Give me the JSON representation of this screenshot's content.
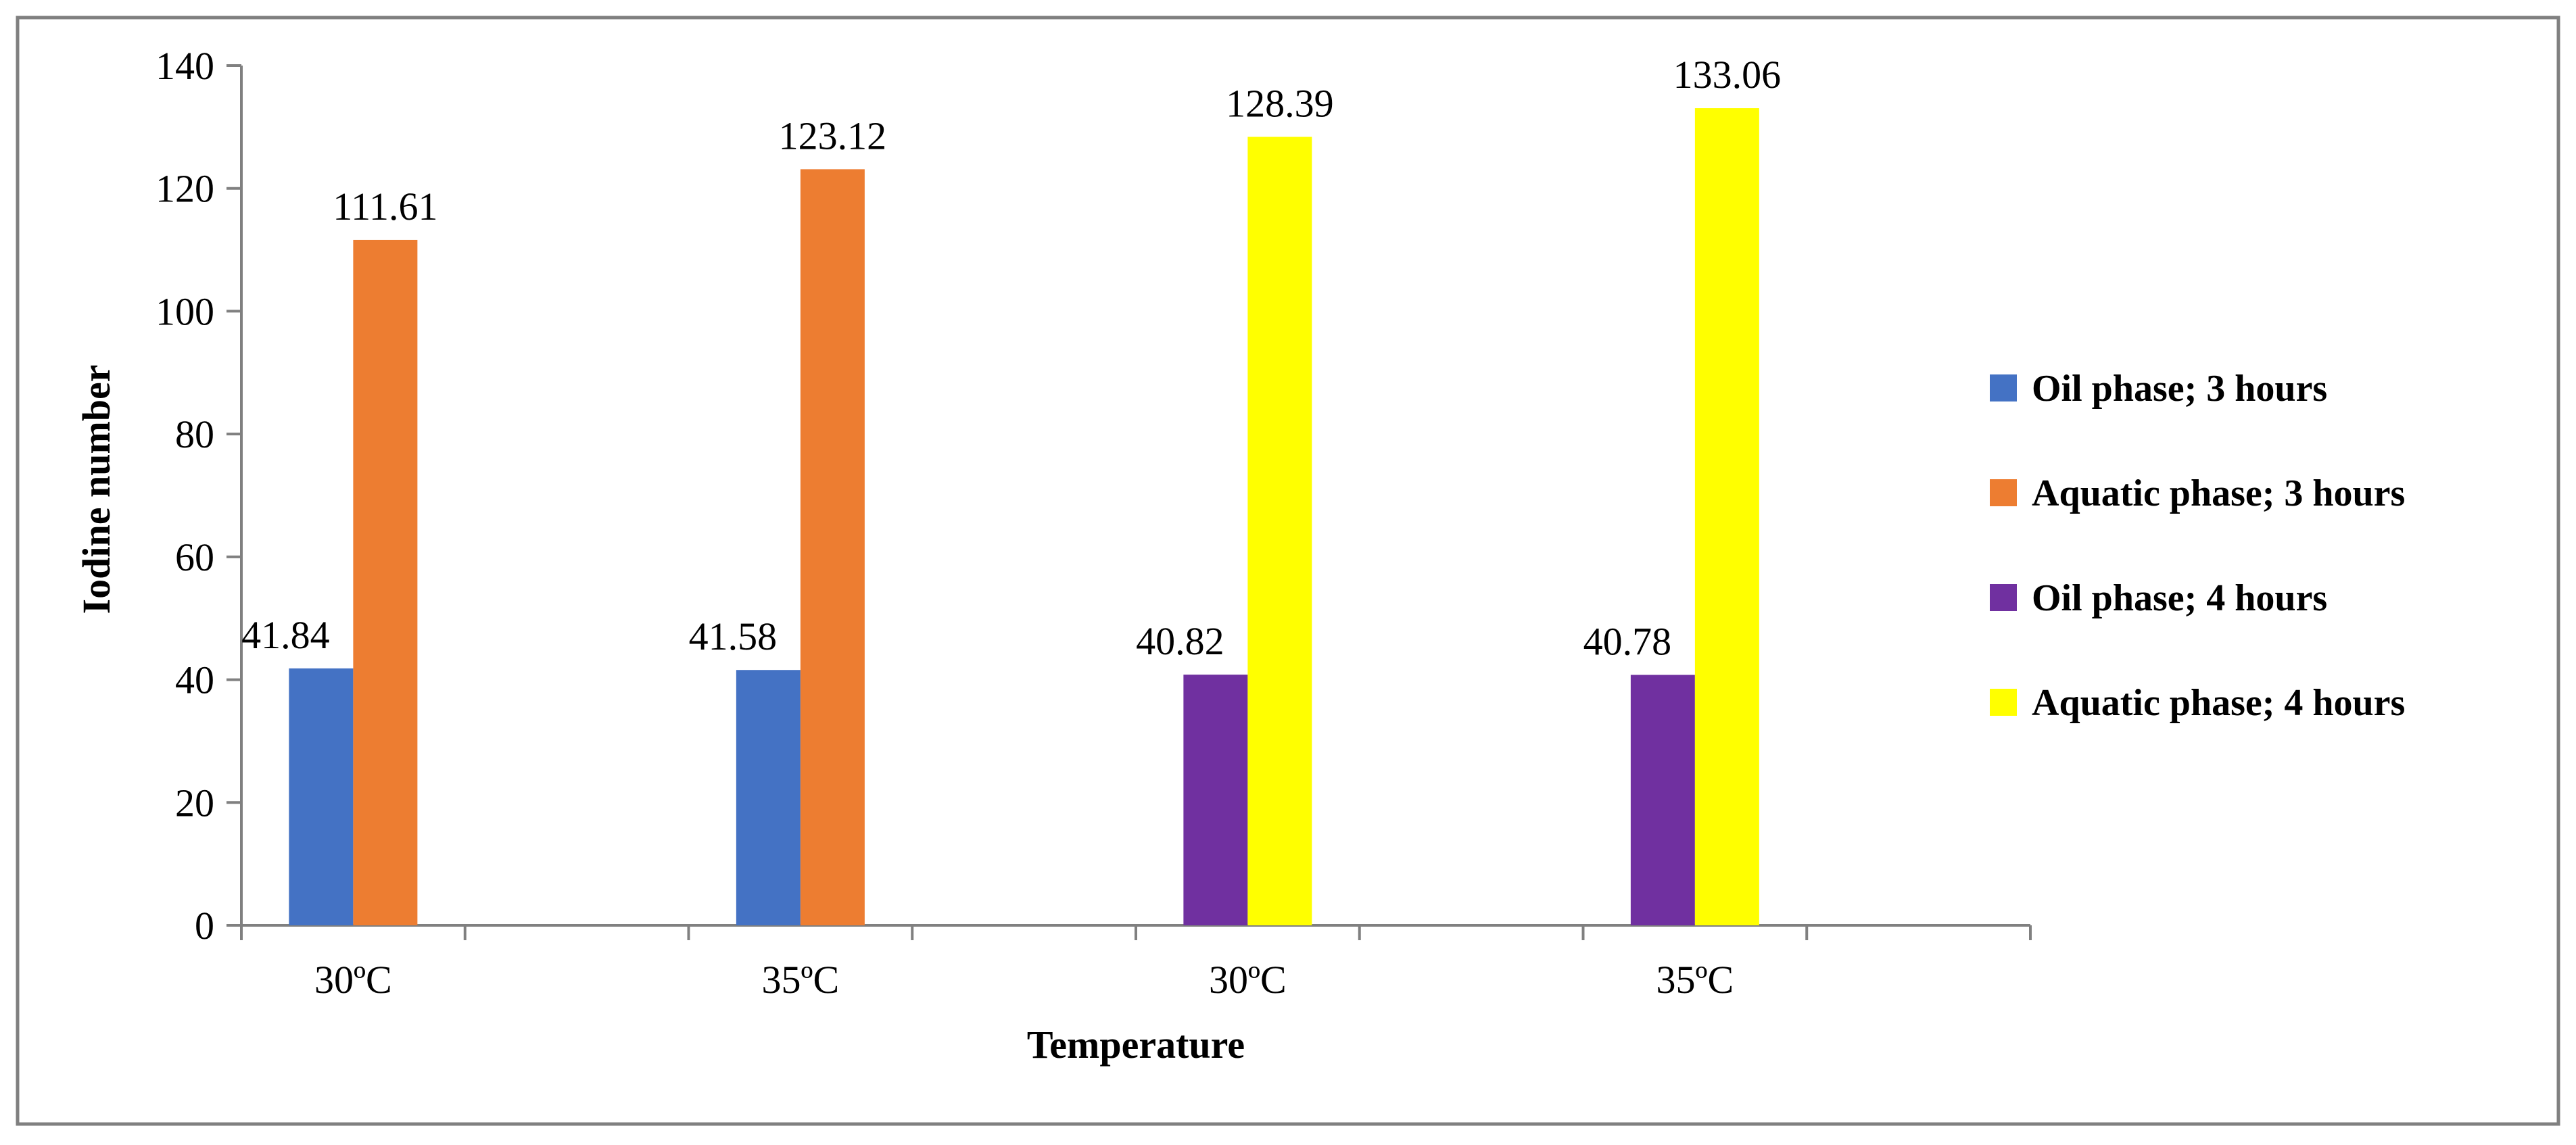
{
  "chart_data": {
    "type": "bar",
    "title": "",
    "xlabel": "Temperature",
    "ylabel": "Iodine number",
    "ylim": [
      0,
      140
    ],
    "yticks": [
      0,
      20,
      40,
      60,
      80,
      100,
      120,
      140
    ],
    "grid": false,
    "legend_position": "right",
    "categories": [
      "30ºC",
      "35ºC",
      "30ºC",
      "35ºC"
    ],
    "series": [
      {
        "name": "Oil phase; 3 hours",
        "color": "#4472C4",
        "values": [
          41.84,
          41.58,
          null,
          null
        ]
      },
      {
        "name": "Aquatic phase; 3 hours",
        "color": "#ED7D31",
        "values": [
          111.61,
          123.12,
          null,
          null
        ]
      },
      {
        "name": "Oil phase; 4 hours",
        "color": "#7030A0",
        "values": [
          null,
          null,
          40.82,
          40.78
        ]
      },
      {
        "name": "Aquatic phase; 4 hours",
        "color": "#FFFF00",
        "values": [
          null,
          null,
          128.39,
          133.06
        ]
      }
    ],
    "data_labels": [
      [
        "41.84",
        "41.58",
        "",
        ""
      ],
      [
        "111.61",
        "123.12",
        "",
        ""
      ],
      [
        "",
        "",
        "40.82",
        "40.78"
      ],
      [
        "",
        "",
        "128.39",
        "133.06"
      ]
    ]
  }
}
